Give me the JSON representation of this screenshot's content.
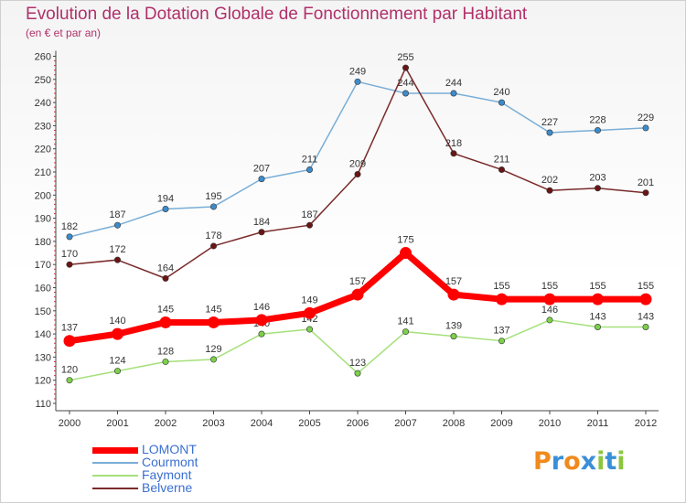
{
  "title": "Evolution de la Dotation Globale de Fonctionnement par Habitant",
  "subtitle": "(en € et par an)",
  "chart_data": {
    "type": "line",
    "x": [
      "2000",
      "2001",
      "2002",
      "2003",
      "2004",
      "2005",
      "2006",
      "2007",
      "2008",
      "2009",
      "2010",
      "2011",
      "2012"
    ],
    "ylim": [
      110,
      260
    ],
    "yticks": [
      110,
      120,
      130,
      140,
      150,
      160,
      170,
      180,
      190,
      200,
      210,
      220,
      230,
      240,
      250,
      260
    ],
    "grid": false,
    "legend_position": "bottom-left",
    "series": [
      {
        "name": "Courmont",
        "color": "#7aaed6",
        "marker": "#3c8ccc",
        "width": 1.5,
        "values": [
          182,
          187,
          194,
          195,
          207,
          211,
          249,
          244,
          244,
          240,
          227,
          228,
          229
        ]
      },
      {
        "name": "Belverne",
        "color": "#7a2a2a",
        "marker": "#6a1515",
        "width": 1.5,
        "values": [
          170,
          172,
          164,
          178,
          184,
          187,
          209,
          255,
          218,
          211,
          202,
          203,
          201
        ]
      },
      {
        "name": "Faymont",
        "color": "#a5e07a",
        "marker": "#7cd04a",
        "width": 1.5,
        "values": [
          120,
          124,
          128,
          129,
          140,
          142,
          123,
          141,
          139,
          137,
          146,
          143,
          143
        ]
      },
      {
        "name": "LOMONT",
        "color": "#ff0000",
        "marker": "#ff0000",
        "width": 7,
        "values": [
          137,
          140,
          145,
          145,
          146,
          149,
          157,
          175,
          157,
          155,
          155,
          155,
          155
        ]
      }
    ]
  },
  "legend": [
    {
      "name": "LOMONT",
      "color": "#ff0000",
      "thickness": 7
    },
    {
      "name": "Courmont",
      "color": "#7aaed6",
      "thickness": 2
    },
    {
      "name": "Faymont",
      "color": "#a5e07a",
      "thickness": 2
    },
    {
      "name": "Belverne",
      "color": "#7a2a2a",
      "thickness": 2
    }
  ],
  "logo": {
    "text": "Proxiti",
    "letters": [
      "P",
      "r",
      "o",
      "x",
      "i",
      "t",
      "i"
    ],
    "colors": [
      "#f08a1c",
      "#3a8fd8",
      "#f08a1c",
      "#3a8fd8",
      "#8cc63f",
      "#3a8fd8",
      "#8cc63f"
    ]
  }
}
